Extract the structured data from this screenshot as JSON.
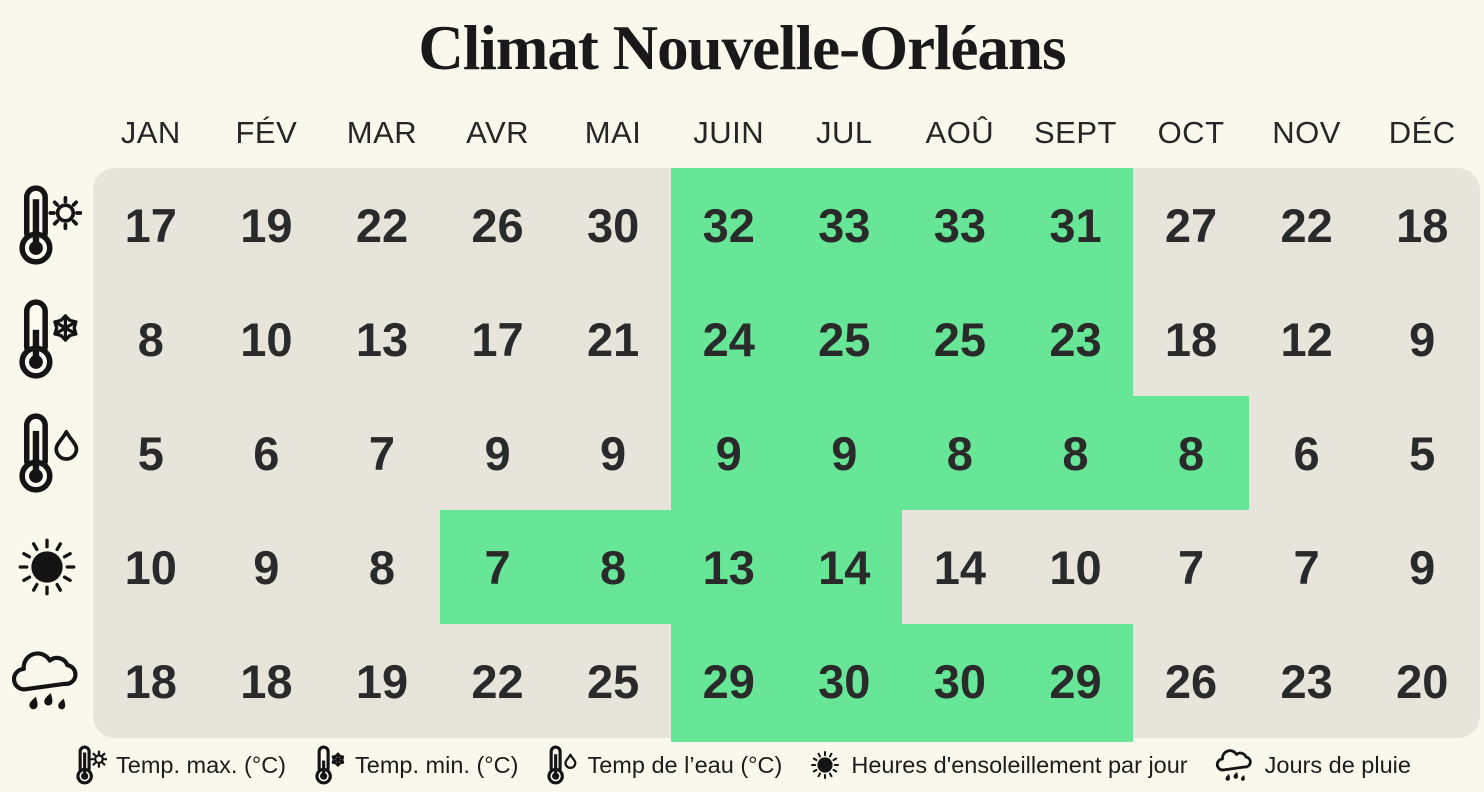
{
  "title": "Climat Nouvelle-Orléans",
  "months": [
    "JAN",
    "FÉV",
    "MAR",
    "AVR",
    "MAI",
    "JUIN",
    "JUL",
    "AOÛ",
    "SEPT",
    "OCT",
    "NOV",
    "DÉC"
  ],
  "colors": {
    "background": "#f9f8ec",
    "table_cell": "#e7e5db",
    "highlight_green": "#67e697",
    "text": "#2a2a2a"
  },
  "icons": [
    "thermometer-sun-icon",
    "thermometer-snowflake-icon",
    "thermometer-drop-icon",
    "sun-icon",
    "rain-cloud-icon"
  ],
  "chart_data": {
    "type": "table",
    "title": "Climat Nouvelle-Orléans",
    "categories": [
      "JAN",
      "FÉV",
      "MAR",
      "AVR",
      "MAI",
      "JUIN",
      "JUL",
      "AOÛ",
      "SEPT",
      "OCT",
      "NOV",
      "DÉC"
    ],
    "series": [
      {
        "name": "Temp. max. (°C)",
        "icon": "thermometer-sun-icon",
        "values": [
          17,
          19,
          22,
          26,
          30,
          32,
          33,
          33,
          31,
          27,
          22,
          18
        ],
        "highlight_indices": [
          5,
          6,
          7,
          8
        ],
        "highlighted_months": [
          "JUIN",
          "JUL",
          "AOÛ",
          "SEPT"
        ]
      },
      {
        "name": "Temp. min. (°C)",
        "icon": "thermometer-snowflake-icon",
        "values": [
          8,
          10,
          13,
          17,
          21,
          24,
          25,
          25,
          23,
          18,
          12,
          9
        ],
        "highlight_indices": [
          5,
          6,
          7,
          8
        ],
        "highlighted_months": [
          "JUIN",
          "JUL",
          "AOÛ",
          "SEPT"
        ]
      },
      {
        "name": "Temp de l’eau (°C)",
        "icon": "thermometer-drop-icon",
        "values": [
          5,
          6,
          7,
          9,
          9,
          9,
          9,
          8,
          8,
          8,
          6,
          5
        ],
        "highlight_indices": [
          5,
          6,
          7,
          8,
          9
        ],
        "highlighted_months": [
          "JUIN",
          "JUL",
          "AOÛ",
          "SEPT",
          "OCT"
        ]
      },
      {
        "name": "Heures d'ensoleillement par jour",
        "icon": "sun-icon",
        "values": [
          10,
          9,
          8,
          7,
          8,
          13,
          14,
          14,
          10,
          7,
          7,
          9
        ],
        "highlight_indices": [
          3,
          4,
          5,
          6
        ],
        "highlighted_months": [
          "AVR",
          "MAI",
          "JUIN",
          "JUL"
        ]
      },
      {
        "name": "Jours de pluie",
        "icon": "rain-cloud-icon",
        "values": [
          18,
          18,
          19,
          22,
          25,
          29,
          30,
          30,
          29,
          26,
          23,
          20
        ],
        "highlight_indices": [
          5,
          6,
          7,
          8
        ],
        "highlighted_months": [
          "JUIN",
          "JUL",
          "AOÛ",
          "SEPT"
        ]
      }
    ]
  }
}
